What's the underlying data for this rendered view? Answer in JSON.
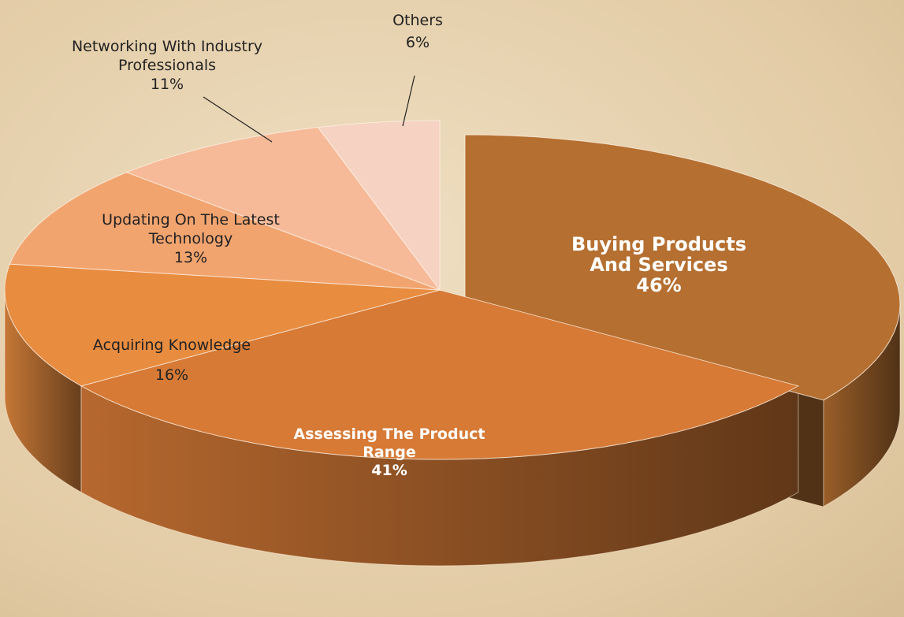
{
  "chart_data": {
    "type": "pie3d",
    "categories": [
      "Buying Products And Services",
      "Assessing The Product Range",
      "Acquiring Knowledge",
      "Updating On The Latest Technology",
      "Networking With Industry Professionals",
      "Others"
    ],
    "values": [
      46,
      41,
      16,
      13,
      11,
      6
    ],
    "value_labels": [
      "46%",
      "41%",
      "16%",
      "13%",
      "11%",
      "6%"
    ],
    "colors": [
      "#b56f30",
      "#d67a36",
      "#e88c40",
      "#f2a46f",
      "#f6ba98",
      "#f5d2c2"
    ]
  }
}
